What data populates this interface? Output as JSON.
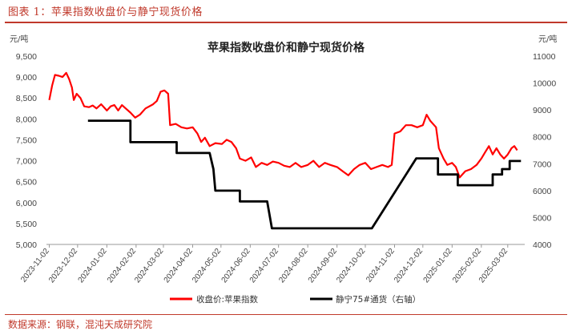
{
  "figure": {
    "caption": "图表 1：苹果指数收盘价与静宁现货价格",
    "source": "数据来源：钢联，混沌天成研究院"
  },
  "chart_data": {
    "type": "line",
    "title": "苹果指数收盘价和静宁现货价格",
    "y_left": {
      "unit": "元/吨",
      "min": 5000,
      "max": 9500,
      "ticks": [
        5000,
        5500,
        6000,
        6500,
        7000,
        7500,
        8000,
        8500,
        9000,
        9500
      ]
    },
    "y_right": {
      "unit": "元/吨",
      "min": 4000,
      "max": 11000,
      "ticks": [
        4000,
        5000,
        6000,
        7000,
        8000,
        9000,
        10000,
        11000
      ]
    },
    "x_range": [
      "2023-10-30",
      "2025-03-20"
    ],
    "x_ticks": [
      "2023-11-02",
      "2023-12-02",
      "2024-01-02",
      "2024-02-02",
      "2024-03-02",
      "2024-04-02",
      "2024-05-02",
      "2024-06-02",
      "2024-07-02",
      "2024-08-02",
      "2024-09-02",
      "2024-10-02",
      "2024-11-02",
      "2024-12-02",
      "2025-01-02",
      "2025-02-02",
      "2025-03-02"
    ],
    "grid": false,
    "legend": "bottom",
    "series": [
      {
        "name": "收盘价:苹果指数",
        "axis": "left",
        "color": "#ff0000",
        "points": [
          [
            "2023-11-02",
            8450
          ],
          [
            "2023-11-05",
            8800
          ],
          [
            "2023-11-08",
            9050
          ],
          [
            "2023-11-12",
            9030
          ],
          [
            "2023-11-16",
            9000
          ],
          [
            "2023-11-20",
            9100
          ],
          [
            "2023-11-23",
            8950
          ],
          [
            "2023-11-26",
            8750
          ],
          [
            "2023-11-28",
            8450
          ],
          [
            "2023-12-01",
            8600
          ],
          [
            "2023-12-05",
            8500
          ],
          [
            "2023-12-09",
            8300
          ],
          [
            "2023-12-14",
            8280
          ],
          [
            "2023-12-18",
            8320
          ],
          [
            "2023-12-22",
            8250
          ],
          [
            "2023-12-27",
            8350
          ],
          [
            "2024-01-02",
            8200
          ],
          [
            "2024-01-06",
            8300
          ],
          [
            "2024-01-10",
            8330
          ],
          [
            "2024-01-14",
            8200
          ],
          [
            "2024-01-18",
            8330
          ],
          [
            "2024-01-22",
            8250
          ],
          [
            "2024-01-27",
            8150
          ],
          [
            "2024-02-01",
            8030
          ],
          [
            "2024-02-06",
            8100
          ],
          [
            "2024-02-12",
            8250
          ],
          [
            "2024-02-20",
            8350
          ],
          [
            "2024-02-24",
            8430
          ],
          [
            "2024-02-28",
            8650
          ],
          [
            "2024-03-03",
            8680
          ],
          [
            "2024-03-07",
            8600
          ],
          [
            "2024-03-09",
            7850
          ],
          [
            "2024-03-15",
            7880
          ],
          [
            "2024-03-21",
            7800
          ],
          [
            "2024-03-27",
            7770
          ],
          [
            "2024-04-02",
            7800
          ],
          [
            "2024-04-07",
            7650
          ],
          [
            "2024-04-11",
            7450
          ],
          [
            "2024-04-15",
            7550
          ],
          [
            "2024-04-20",
            7350
          ],
          [
            "2024-04-26",
            7420
          ],
          [
            "2024-05-03",
            7400
          ],
          [
            "2024-05-08",
            7500
          ],
          [
            "2024-05-13",
            7450
          ],
          [
            "2024-05-18",
            7300
          ],
          [
            "2024-05-22",
            7050
          ],
          [
            "2024-05-28",
            7000
          ],
          [
            "2024-06-03",
            7080
          ],
          [
            "2024-06-08",
            6850
          ],
          [
            "2024-06-14",
            6950
          ],
          [
            "2024-06-20",
            6900
          ],
          [
            "2024-06-26",
            6980
          ],
          [
            "2024-07-02",
            6950
          ],
          [
            "2024-07-08",
            6880
          ],
          [
            "2024-07-14",
            6850
          ],
          [
            "2024-07-20",
            6950
          ],
          [
            "2024-07-26",
            6850
          ],
          [
            "2024-08-02",
            6900
          ],
          [
            "2024-08-08",
            7000
          ],
          [
            "2024-08-14",
            6850
          ],
          [
            "2024-08-20",
            6950
          ],
          [
            "2024-08-26",
            6900
          ],
          [
            "2024-09-02",
            6850
          ],
          [
            "2024-09-08",
            6750
          ],
          [
            "2024-09-14",
            6650
          ],
          [
            "2024-09-20",
            6800
          ],
          [
            "2024-09-26",
            6900
          ],
          [
            "2024-10-02",
            6950
          ],
          [
            "2024-10-08",
            6800
          ],
          [
            "2024-10-14",
            6850
          ],
          [
            "2024-10-20",
            6900
          ],
          [
            "2024-10-26",
            6850
          ],
          [
            "2024-10-30",
            6900
          ],
          [
            "2024-11-02",
            7650
          ],
          [
            "2024-11-08",
            7700
          ],
          [
            "2024-11-14",
            7850
          ],
          [
            "2024-11-20",
            7850
          ],
          [
            "2024-11-26",
            7800
          ],
          [
            "2024-12-02",
            7850
          ],
          [
            "2024-12-06",
            8100
          ],
          [
            "2024-12-10",
            7950
          ],
          [
            "2024-12-16",
            7800
          ],
          [
            "2024-12-19",
            7300
          ],
          [
            "2024-12-24",
            7050
          ],
          [
            "2024-12-28",
            6900
          ],
          [
            "2025-01-02",
            6950
          ],
          [
            "2025-01-06",
            6850
          ],
          [
            "2025-01-10",
            6600
          ],
          [
            "2025-01-16",
            6750
          ],
          [
            "2025-01-22",
            6800
          ],
          [
            "2025-01-28",
            6900
          ],
          [
            "2025-02-02",
            7050
          ],
          [
            "2025-02-06",
            7200
          ],
          [
            "2025-02-10",
            7350
          ],
          [
            "2025-02-14",
            7150
          ],
          [
            "2025-02-18",
            7300
          ],
          [
            "2025-02-22",
            7150
          ],
          [
            "2025-02-26",
            7050
          ],
          [
            "2025-03-02",
            7150
          ],
          [
            "2025-03-06",
            7300
          ],
          [
            "2025-03-09",
            7350
          ],
          [
            "2025-03-12",
            7250
          ]
        ]
      },
      {
        "name": "静宁75#通货（右轴）",
        "axis": "right",
        "color": "#000000",
        "points": [
          [
            "2023-12-13",
            8600
          ],
          [
            "2024-01-27",
            8600
          ],
          [
            "2024-01-27",
            7800
          ],
          [
            "2024-03-16",
            7800
          ],
          [
            "2024-03-16",
            7400
          ],
          [
            "2024-04-20",
            7400
          ],
          [
            "2024-04-24",
            6800
          ],
          [
            "2024-04-26",
            6000
          ],
          [
            "2024-05-22",
            6000
          ],
          [
            "2024-05-22",
            5600
          ],
          [
            "2024-06-20",
            5600
          ],
          [
            "2024-06-25",
            4600
          ],
          [
            "2024-10-09",
            4600
          ],
          [
            "2024-11-25",
            7200
          ],
          [
            "2024-12-18",
            7200
          ],
          [
            "2024-12-18",
            6600
          ],
          [
            "2025-01-08",
            6600
          ],
          [
            "2025-01-08",
            6200
          ],
          [
            "2025-02-14",
            6200
          ],
          [
            "2025-02-14",
            6600
          ],
          [
            "2025-02-24",
            6600
          ],
          [
            "2025-02-24",
            6800
          ],
          [
            "2025-03-04",
            6800
          ],
          [
            "2025-03-04",
            7100
          ],
          [
            "2025-03-16",
            7100
          ]
        ]
      }
    ]
  }
}
